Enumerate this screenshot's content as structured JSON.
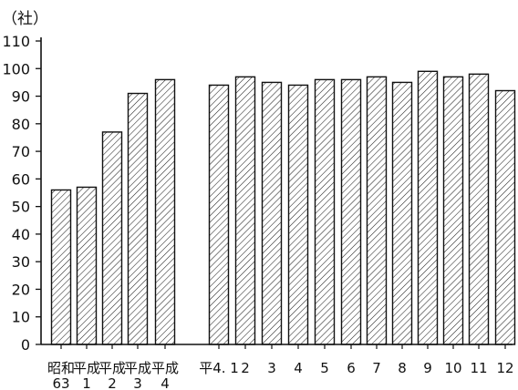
{
  "chart_data": {
    "type": "bar",
    "unit_label": "（社）",
    "ylim": [
      0,
      110
    ],
    "yticks": [
      0,
      10,
      20,
      30,
      40,
      50,
      60,
      70,
      80,
      90,
      100,
      110
    ],
    "grid": false,
    "fill_pattern": "diagonal-hatch",
    "groups": [
      {
        "name": "annual",
        "bars": [
          {
            "label": [
              "昭和",
              "63"
            ],
            "value": 56
          },
          {
            "label": [
              "平成",
              "1"
            ],
            "value": 57
          },
          {
            "label": [
              "平成",
              "2"
            ],
            "value": 77
          },
          {
            "label": [
              "平成",
              "3"
            ],
            "value": 91
          },
          {
            "label": [
              "平成",
              "4"
            ],
            "value": 96
          }
        ]
      },
      {
        "name": "monthly",
        "bars": [
          {
            "label": [
              "平4. 1",
              ""
            ],
            "value": 94
          },
          {
            "label": [
              "2",
              ""
            ],
            "value": 97
          },
          {
            "label": [
              "3",
              ""
            ],
            "value": 95
          },
          {
            "label": [
              "4",
              ""
            ],
            "value": 94
          },
          {
            "label": [
              "5",
              ""
            ],
            "value": 96
          },
          {
            "label": [
              "6",
              ""
            ],
            "value": 96
          },
          {
            "label": [
              "7",
              ""
            ],
            "value": 97
          },
          {
            "label": [
              "8",
              ""
            ],
            "value": 95
          },
          {
            "label": [
              "9",
              ""
            ],
            "value": 99
          },
          {
            "label": [
              "10",
              ""
            ],
            "value": 97
          },
          {
            "label": [
              "11",
              ""
            ],
            "value": 98
          },
          {
            "label": [
              "12",
              ""
            ],
            "value": 92
          }
        ]
      }
    ]
  }
}
